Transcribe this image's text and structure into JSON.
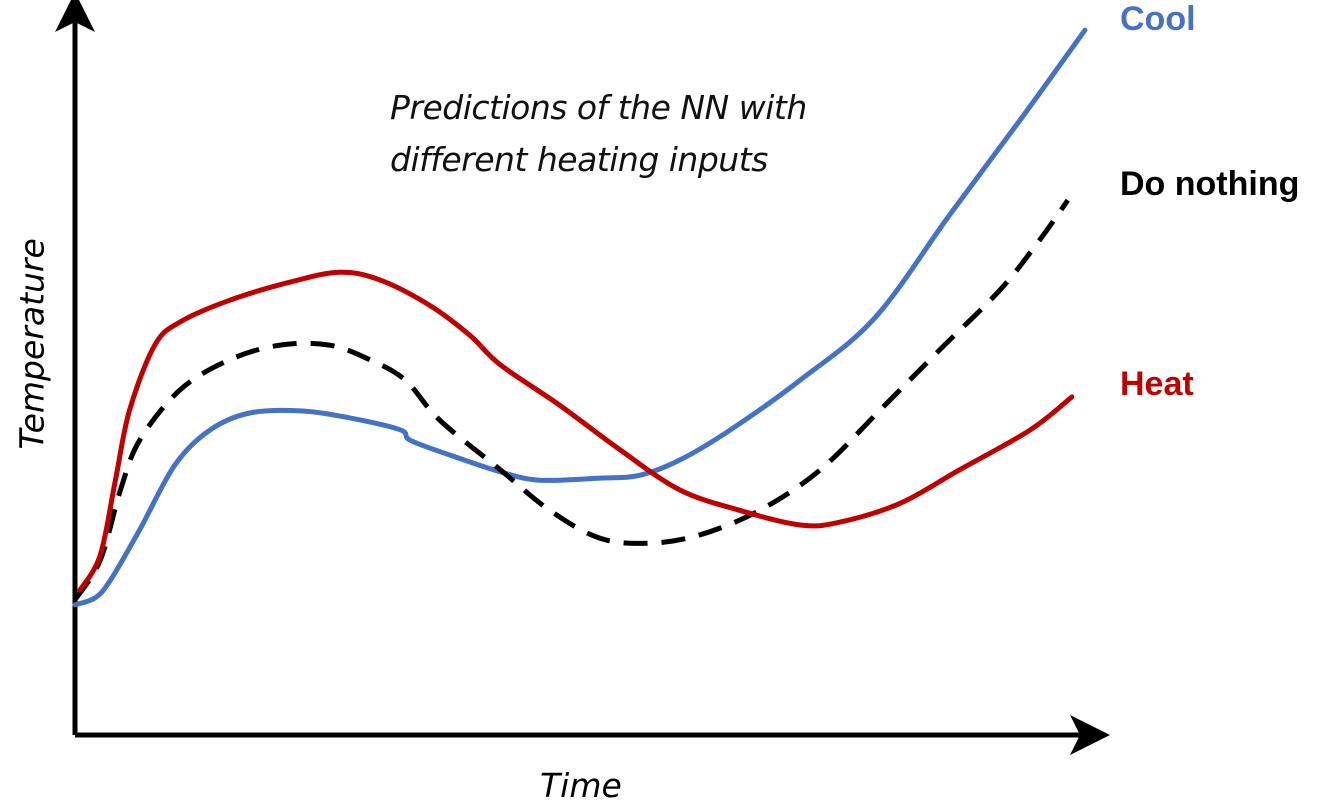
{
  "chart_data": {
    "type": "line",
    "title": "",
    "annotation": [
      "Predictions of the NN with",
      "different heating inputs"
    ],
    "xlabel": "Time",
    "ylabel": "Temperature",
    "xlim": [
      0,
      100
    ],
    "ylim": [
      0,
      105
    ],
    "grid": false,
    "ticks": false,
    "legend_placement": "right, inline labels at line ends",
    "series": [
      {
        "name": "Cool",
        "color": "#4472C4",
        "style": "solid",
        "x": [
          0,
          2,
          3.5,
          6.4,
          9.9,
          13.4,
          17.3,
          22.3,
          27.2,
          32.2,
          33.2,
          37.1,
          42.1,
          46,
          52,
          55.9,
          59.9,
          64.9,
          71.8,
          79.2,
          86.6,
          93.6,
          100
        ],
        "y": [
          18.6,
          19.6,
          22.1,
          29.3,
          38.6,
          43.6,
          46,
          46.3,
          45.3,
          43.6,
          42.1,
          40,
          37.6,
          36.4,
          36.7,
          37.1,
          39.3,
          43.6,
          50.7,
          59.6,
          74.3,
          87.9,
          100.7
        ]
      },
      {
        "name": "Do nothing",
        "color": "#000000",
        "style": "dashed",
        "x": [
          0,
          2.5,
          4.5,
          6.4,
          10.4,
          15.3,
          20.3,
          25.2,
          29.2,
          32.7,
          36.1,
          42.1,
          47,
          52,
          56.9,
          61.9,
          67.8,
          73.8,
          79.7,
          85.6,
          91.6,
          95.5,
          98.3
        ],
        "y": [
          19.3,
          25,
          35,
          42.1,
          49.3,
          53.6,
          55.7,
          55.7,
          53.6,
          50.7,
          45,
          37.9,
          32.1,
          28.1,
          27.4,
          28.6,
          32.1,
          37.9,
          46.4,
          55,
          63.6,
          70.7,
          76.4
        ]
      },
      {
        "name": "Heat",
        "color": "#C00000",
        "style": "solid",
        "x": [
          0.5,
          2.5,
          4,
          5.4,
          7.9,
          10.4,
          15.3,
          21.3,
          26.2,
          30.2,
          35.1,
          39.1,
          42.1,
          48,
          54,
          59.9,
          65.8,
          71.8,
          75.7,
          81.7,
          87.6,
          94.6,
          98.7
        ],
        "y": [
          20.7,
          25.7,
          36.4,
          46.4,
          55.7,
          59,
          62.1,
          64.7,
          66.1,
          65,
          61.4,
          57.1,
          52.9,
          47.1,
          40.7,
          35,
          32.1,
          30,
          30.4,
          33.1,
          37.9,
          43.6,
          48.3
        ]
      }
    ]
  }
}
